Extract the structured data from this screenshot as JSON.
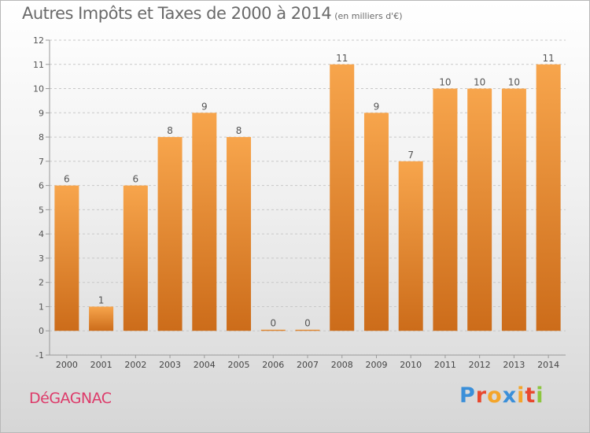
{
  "header": {
    "title": "Autres Impôts et Taxes de 2000 à 2014",
    "unit": "(en milliers d'€)"
  },
  "footer": {
    "commune": "DéGAGNAC",
    "brand": "Proxiti"
  },
  "colors": {
    "bar_light": "#f7a54c",
    "bar_dark": "#cc6c1a",
    "title": "#6a6a6a",
    "commune": "#dd3b6a",
    "grid": "#c8c8c8",
    "logo": [
      "#3a8fd9",
      "#e8482e",
      "#f4a52a",
      "#3a8fd9",
      "#f4a52a",
      "#e8482e",
      "#8dc63f"
    ]
  },
  "chart_data": {
    "type": "bar",
    "title": "Autres Impôts et Taxes de 2000 à 2014",
    "subtitle": "(en milliers d'€)",
    "categories": [
      "2000",
      "2001",
      "2002",
      "2003",
      "2004",
      "2005",
      "2006",
      "2007",
      "2008",
      "2009",
      "2010",
      "2011",
      "2012",
      "2013",
      "2014"
    ],
    "values": [
      6,
      1,
      6,
      8,
      9,
      8,
      0,
      0,
      11,
      9,
      7,
      10,
      10,
      10,
      11
    ],
    "data_labels": [
      "6",
      "1",
      "6",
      "8",
      "9",
      "8",
      "0",
      "0",
      "11",
      "9",
      "7",
      "10",
      "10",
      "10",
      "11"
    ],
    "ylim": [
      -1,
      12
    ],
    "yticks": [
      -1,
      0,
      1,
      2,
      3,
      4,
      5,
      6,
      7,
      8,
      9,
      10,
      11,
      12
    ],
    "grid": true,
    "xlabel": "",
    "ylabel": ""
  }
}
